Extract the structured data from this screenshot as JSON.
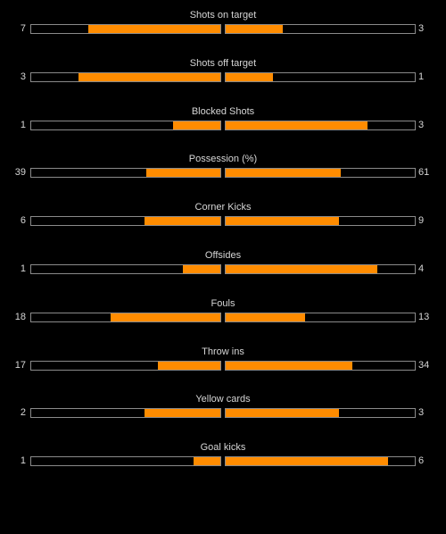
{
  "colors": {
    "background": "#000000",
    "fill": "#ff8c00",
    "bar_border": "#8a8a8a",
    "text": "#d6d6d6"
  },
  "stats": [
    {
      "label": "Shots on target",
      "home": "7",
      "away": "3",
      "home_fill": 0.7,
      "away_fill": 0.3
    },
    {
      "label": "Shots off target",
      "home": "3",
      "away": "1",
      "home_fill": 0.75,
      "away_fill": 0.25
    },
    {
      "label": "Blocked Shots",
      "home": "1",
      "away": "3",
      "home_fill": 0.25,
      "away_fill": 0.75
    },
    {
      "label": "Possession (%)",
      "home": "39",
      "away": "61",
      "home_fill": 0.39,
      "away_fill": 0.61
    },
    {
      "label": "Corner Kicks",
      "home": "6",
      "away": "9",
      "home_fill": 0.4,
      "away_fill": 0.6
    },
    {
      "label": "Offsides",
      "home": "1",
      "away": "4",
      "home_fill": 0.2,
      "away_fill": 0.8
    },
    {
      "label": "Fouls",
      "home": "18",
      "away": "13",
      "home_fill": 0.58,
      "away_fill": 0.42
    },
    {
      "label": "Throw ins",
      "home": "17",
      "away": "34",
      "home_fill": 0.33,
      "away_fill": 0.67
    },
    {
      "label": "Yellow cards",
      "home": "2",
      "away": "3",
      "home_fill": 0.4,
      "away_fill": 0.6
    },
    {
      "label": "Goal kicks",
      "home": "1",
      "away": "6",
      "home_fill": 0.14,
      "away_fill": 0.86
    }
  ]
}
